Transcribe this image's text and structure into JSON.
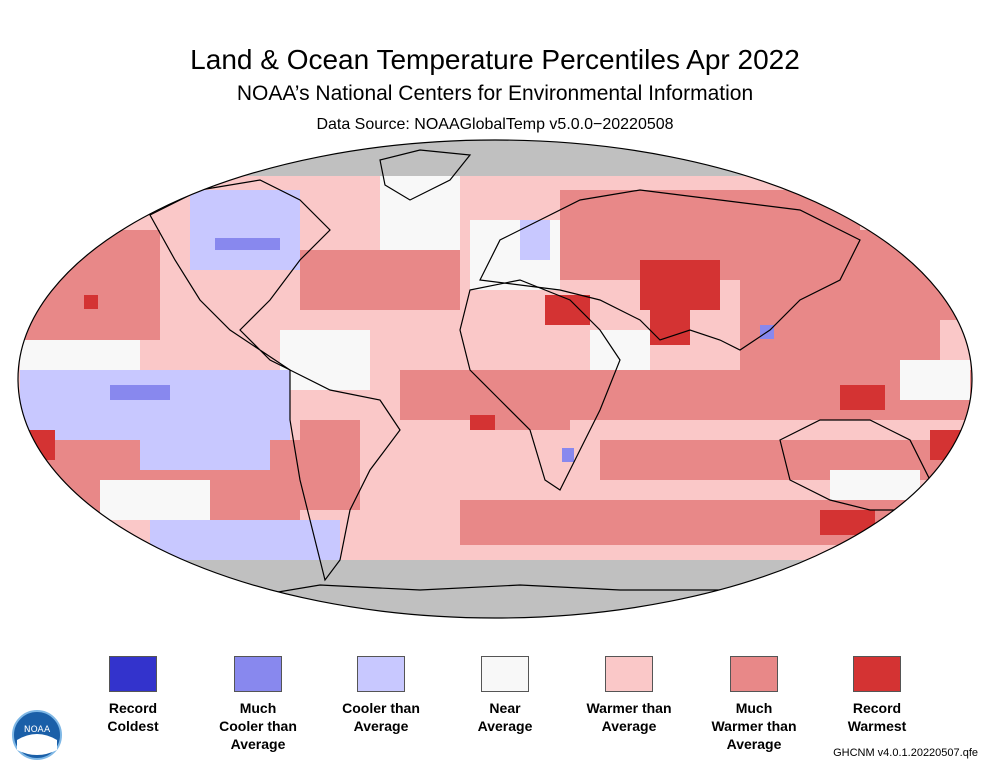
{
  "header": {
    "title": "Land & Ocean Temperature Percentiles Apr 2022",
    "subtitle": "NOAA’s National Centers for Environmental Information",
    "source": "Data Source: NOAAGlobalTemp v5.0.0−20220508"
  },
  "legend": [
    {
      "label": "Record\nColdest",
      "color": "#3333cc"
    },
    {
      "label": "Much\nCooler than\nAverage",
      "color": "#8888ee"
    },
    {
      "label": "Cooler than\nAverage",
      "color": "#c8c8ff"
    },
    {
      "label": "Near\nAverage",
      "color": "#f8f8f8"
    },
    {
      "label": "Warmer than\nAverage",
      "color": "#fac8c8"
    },
    {
      "label": "Much\nWarmer than\nAverage",
      "color": "#e88888"
    },
    {
      "label": "Record\nWarmest",
      "color": "#d43333"
    }
  ],
  "colors": {
    "missing": "#c0c0c0",
    "outline": "#000000"
  },
  "logo": {
    "text": "NOAA",
    "icon": "noaa-logo-icon"
  },
  "footer": {
    "credit": "GHCNM v4.0.1.20220507.qfe"
  }
}
